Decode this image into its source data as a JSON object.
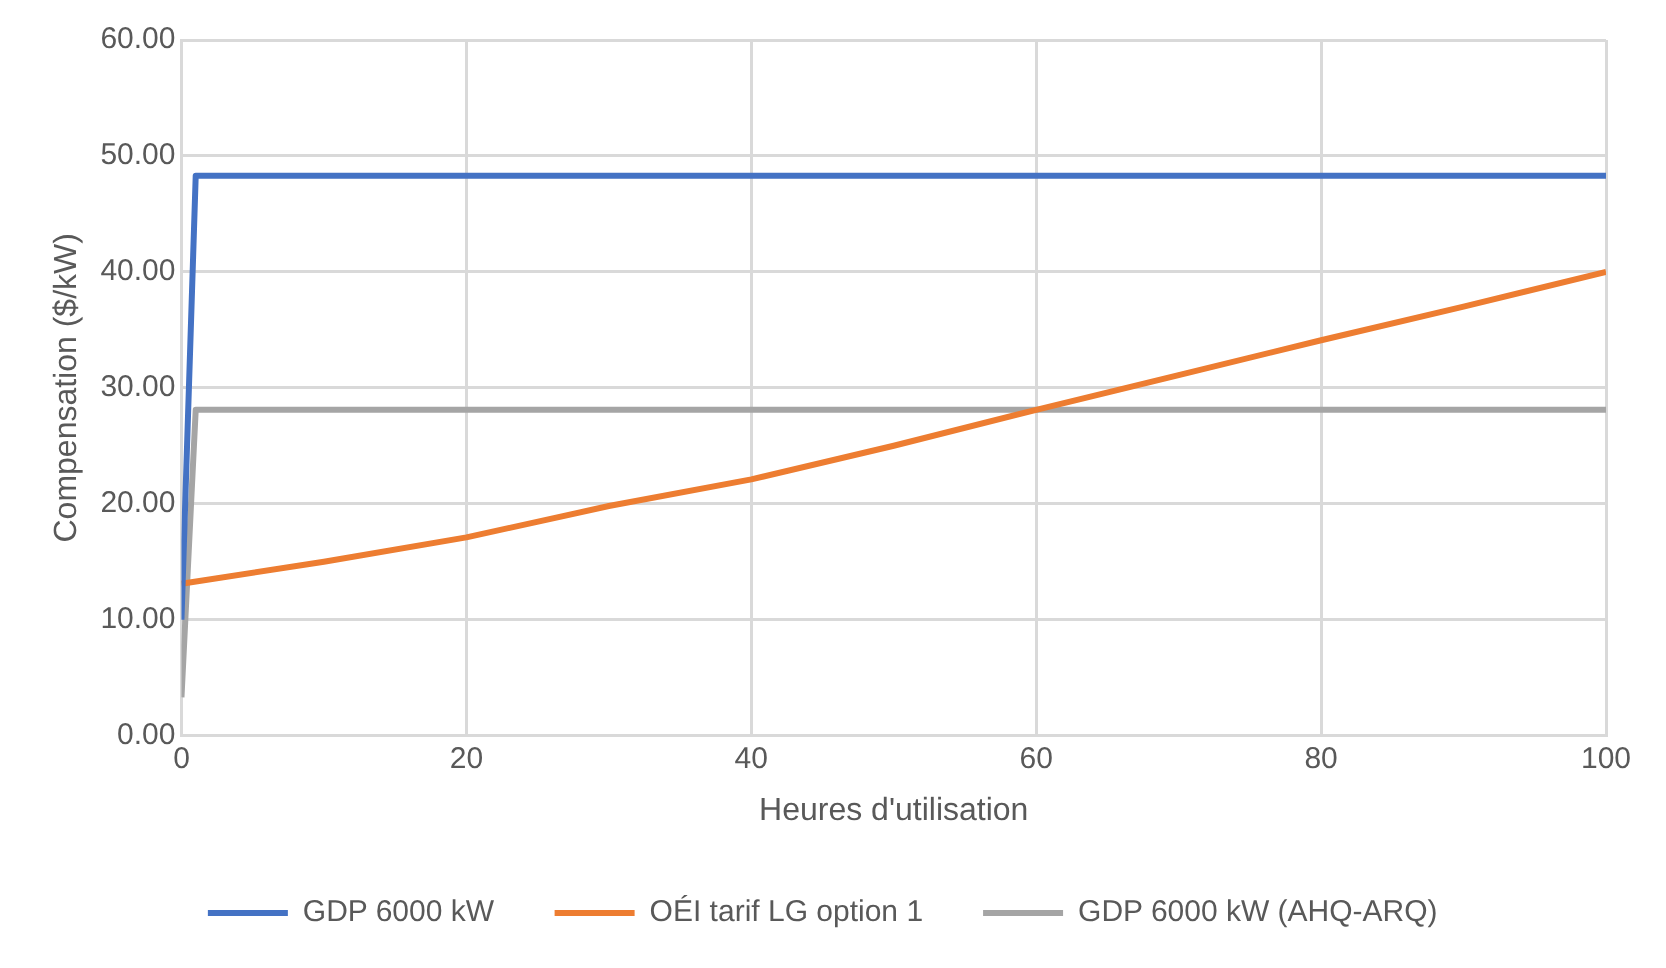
{
  "chart_data": {
    "type": "line",
    "xlabel": "Heures d'utilisation",
    "ylabel": "Compensation ($/kW)",
    "xlim": [
      0,
      100
    ],
    "xticks": [
      0,
      20,
      40,
      60,
      80,
      100
    ],
    "ylim": [
      0,
      60
    ],
    "yticks": [
      {
        "value": 0,
        "label": "0.00"
      },
      {
        "value": 10,
        "label": "10.00"
      },
      {
        "value": 20,
        "label": "20.00"
      },
      {
        "value": 30,
        "label": "30.00"
      },
      {
        "value": 40,
        "label": "40.00"
      },
      {
        "value": 50,
        "label": "50.00"
      },
      {
        "value": 60,
        "label": "60.00"
      }
    ],
    "grid": true,
    "legend": "bottom",
    "marker": "none",
    "line_style": "solid",
    "series": [
      {
        "name": "GDP 6000 kW",
        "color": "#4472c4",
        "x": [
          0,
          1,
          100
        ],
        "values": [
          10,
          48.3,
          48.3
        ]
      },
      {
        "name": "OÉI tarif LG option 1",
        "color": "#ed7d31",
        "x": [
          0,
          10,
          20,
          30,
          40,
          50,
          60,
          70,
          80,
          90,
          100
        ],
        "values": [
          13.1,
          15,
          17.1,
          19.8,
          22.1,
          25,
          28.1,
          31.1,
          34.1,
          37,
          40
        ]
      },
      {
        "name": "GDP 6000 kW (AHQ-ARQ)",
        "color": "#a5a5a5",
        "x": [
          0,
          1,
          100
        ],
        "values": [
          3.3,
          28.1,
          28.1
        ]
      }
    ]
  }
}
